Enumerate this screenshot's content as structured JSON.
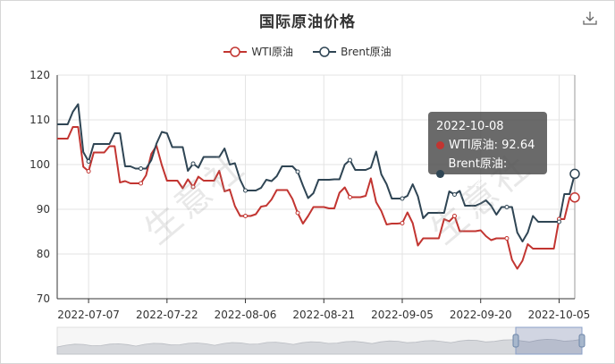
{
  "toolbar": {
    "download_icon": "download-icon"
  },
  "watermark_text": "生意社",
  "tooltip": {
    "date": "2022-10-08",
    "rows": [
      {
        "label": "WTI原油: 92.64",
        "color": "#c23531"
      },
      {
        "label": "Brent原油: 97.92",
        "color": "#2f4554"
      }
    ]
  },
  "chart_data": {
    "type": "line",
    "title": "国际原油价格",
    "ylim": [
      70,
      120
    ],
    "yticks": [
      70,
      80,
      90,
      100,
      110,
      120
    ],
    "xtick_labels": [
      "2022-07-07",
      "2022-07-22",
      "2022-08-06",
      "2022-08-21",
      "2022-09-05",
      "2022-09-20",
      "2022-10-05"
    ],
    "x_start": "2022-07-01",
    "x_end": "2022-10-08",
    "legend_position": "top-center",
    "grid": true,
    "series": [
      {
        "name": "WTI原油",
        "color": "#c23531",
        "values": [
          [
            "2022-07-01",
            105.8
          ],
          [
            "2022-07-02",
            105.8
          ],
          [
            "2022-07-03",
            105.8
          ],
          [
            "2022-07-04",
            108.4
          ],
          [
            "2022-07-05",
            108.4
          ],
          [
            "2022-07-06",
            99.5
          ],
          [
            "2022-07-07",
            98.5
          ],
          [
            "2022-07-08",
            102.7
          ],
          [
            "2022-07-09",
            102.7
          ],
          [
            "2022-07-10",
            102.7
          ],
          [
            "2022-07-11",
            104.1
          ],
          [
            "2022-07-12",
            104.1
          ],
          [
            "2022-07-13",
            96.0
          ],
          [
            "2022-07-14",
            96.3
          ],
          [
            "2022-07-15",
            95.8
          ],
          [
            "2022-07-16",
            95.8
          ],
          [
            "2022-07-17",
            95.8
          ],
          [
            "2022-07-18",
            97.6
          ],
          [
            "2022-07-19",
            102.4
          ],
          [
            "2022-07-20",
            104.2
          ],
          [
            "2022-07-21",
            99.9
          ],
          [
            "2022-07-22",
            96.4
          ],
          [
            "2022-07-23",
            96.4
          ],
          [
            "2022-07-24",
            96.4
          ],
          [
            "2022-07-25",
            94.7
          ],
          [
            "2022-07-26",
            96.7
          ],
          [
            "2022-07-27",
            95.0
          ],
          [
            "2022-07-28",
            97.3
          ],
          [
            "2022-07-29",
            96.4
          ],
          [
            "2022-07-30",
            96.4
          ],
          [
            "2022-07-31",
            96.4
          ],
          [
            "2022-08-01",
            98.6
          ],
          [
            "2022-08-02",
            94.0
          ],
          [
            "2022-08-03",
            94.4
          ],
          [
            "2022-08-04",
            90.7
          ],
          [
            "2022-08-05",
            88.5
          ],
          [
            "2022-08-06",
            88.5
          ],
          [
            "2022-08-07",
            88.5
          ],
          [
            "2022-08-08",
            88.9
          ],
          [
            "2022-08-09",
            90.6
          ],
          [
            "2022-08-10",
            90.8
          ],
          [
            "2022-08-11",
            92.2
          ],
          [
            "2022-08-12",
            94.3
          ],
          [
            "2022-08-13",
            94.3
          ],
          [
            "2022-08-14",
            94.3
          ],
          [
            "2022-08-15",
            92.3
          ],
          [
            "2022-08-16",
            89.2
          ],
          [
            "2022-08-17",
            86.8
          ],
          [
            "2022-08-18",
            88.5
          ],
          [
            "2022-08-19",
            90.5
          ],
          [
            "2022-08-20",
            90.5
          ],
          [
            "2022-08-21",
            90.5
          ],
          [
            "2022-08-22",
            90.2
          ],
          [
            "2022-08-23",
            90.2
          ],
          [
            "2022-08-24",
            93.7
          ],
          [
            "2022-08-25",
            94.9
          ],
          [
            "2022-08-26",
            92.7
          ],
          [
            "2022-08-27",
            92.7
          ],
          [
            "2022-08-28",
            92.7
          ],
          [
            "2022-08-29",
            93.0
          ],
          [
            "2022-08-30",
            96.9
          ],
          [
            "2022-08-31",
            91.6
          ],
          [
            "2022-09-01",
            89.6
          ],
          [
            "2022-09-02",
            86.6
          ],
          [
            "2022-09-03",
            86.8
          ],
          [
            "2022-09-04",
            86.8
          ],
          [
            "2022-09-05",
            86.9
          ],
          [
            "2022-09-06",
            89.3
          ],
          [
            "2022-09-07",
            86.9
          ],
          [
            "2022-09-08",
            81.9
          ],
          [
            "2022-09-09",
            83.5
          ],
          [
            "2022-09-10",
            83.5
          ],
          [
            "2022-09-11",
            83.5
          ],
          [
            "2022-09-12",
            83.5
          ],
          [
            "2022-09-13",
            87.8
          ],
          [
            "2022-09-14",
            87.3
          ],
          [
            "2022-09-15",
            88.5
          ],
          [
            "2022-09-16",
            85.1
          ],
          [
            "2022-09-17",
            85.1
          ],
          [
            "2022-09-18",
            85.1
          ],
          [
            "2022-09-19",
            85.1
          ],
          [
            "2022-09-20",
            85.3
          ],
          [
            "2022-09-21",
            84.0
          ],
          [
            "2022-09-22",
            83.1
          ],
          [
            "2022-09-23",
            83.5
          ],
          [
            "2022-09-24",
            83.5
          ],
          [
            "2022-09-25",
            83.5
          ],
          [
            "2022-09-26",
            78.7
          ],
          [
            "2022-09-27",
            76.7
          ],
          [
            "2022-09-28",
            78.5
          ],
          [
            "2022-09-29",
            82.2
          ],
          [
            "2022-09-30",
            81.2
          ],
          [
            "2022-10-01",
            81.2
          ],
          [
            "2022-10-02",
            81.2
          ],
          [
            "2022-10-03",
            81.2
          ],
          [
            "2022-10-04",
            81.2
          ],
          [
            "2022-10-05",
            87.8
          ],
          [
            "2022-10-06",
            87.8
          ],
          [
            "2022-10-07",
            92.6
          ],
          [
            "2022-10-08",
            92.64
          ]
        ]
      },
      {
        "name": "Brent原油",
        "color": "#2f4554",
        "values": [
          [
            "2022-07-01",
            109.0
          ],
          [
            "2022-07-02",
            109.0
          ],
          [
            "2022-07-03",
            109.0
          ],
          [
            "2022-07-04",
            111.8
          ],
          [
            "2022-07-05",
            113.5
          ],
          [
            "2022-07-06",
            102.8
          ],
          [
            "2022-07-07",
            100.7
          ],
          [
            "2022-07-08",
            104.6
          ],
          [
            "2022-07-09",
            104.6
          ],
          [
            "2022-07-10",
            104.6
          ],
          [
            "2022-07-11",
            104.6
          ],
          [
            "2022-07-12",
            107.0
          ],
          [
            "2022-07-13",
            107.0
          ],
          [
            "2022-07-14",
            99.6
          ],
          [
            "2022-07-15",
            99.6
          ],
          [
            "2022-07-16",
            99.1
          ],
          [
            "2022-07-17",
            99.1
          ],
          [
            "2022-07-18",
            99.1
          ],
          [
            "2022-07-19",
            101.0
          ],
          [
            "2022-07-20",
            104.7
          ],
          [
            "2022-07-21",
            107.3
          ],
          [
            "2022-07-22",
            107.0
          ],
          [
            "2022-07-23",
            103.9
          ],
          [
            "2022-07-24",
            103.9
          ],
          [
            "2022-07-25",
            103.9
          ],
          [
            "2022-07-26",
            98.6
          ],
          [
            "2022-07-27",
            100.2
          ],
          [
            "2022-07-28",
            99.3
          ],
          [
            "2022-07-29",
            101.7
          ],
          [
            "2022-07-30",
            101.7
          ],
          [
            "2022-07-31",
            101.7
          ],
          [
            "2022-08-01",
            101.7
          ],
          [
            "2022-08-02",
            103.6
          ],
          [
            "2022-08-03",
            100.0
          ],
          [
            "2022-08-04",
            100.3
          ],
          [
            "2022-08-05",
            96.6
          ],
          [
            "2022-08-06",
            94.2
          ],
          [
            "2022-08-07",
            94.2
          ],
          [
            "2022-08-08",
            94.2
          ],
          [
            "2022-08-09",
            94.8
          ],
          [
            "2022-08-10",
            96.6
          ],
          [
            "2022-08-11",
            96.3
          ],
          [
            "2022-08-12",
            97.4
          ],
          [
            "2022-08-13",
            99.6
          ],
          [
            "2022-08-14",
            99.6
          ],
          [
            "2022-08-15",
            99.6
          ],
          [
            "2022-08-16",
            98.4
          ],
          [
            "2022-08-17",
            95.3
          ],
          [
            "2022-08-18",
            92.5
          ],
          [
            "2022-08-19",
            93.6
          ],
          [
            "2022-08-20",
            96.6
          ],
          [
            "2022-08-21",
            96.6
          ],
          [
            "2022-08-22",
            96.6
          ],
          [
            "2022-08-23",
            96.7
          ],
          [
            "2022-08-24",
            96.7
          ],
          [
            "2022-08-25",
            100.0
          ],
          [
            "2022-08-26",
            101.0
          ],
          [
            "2022-08-27",
            98.8
          ],
          [
            "2022-08-28",
            98.8
          ],
          [
            "2022-08-29",
            98.8
          ],
          [
            "2022-08-30",
            99.3
          ],
          [
            "2022-08-31",
            102.9
          ],
          [
            "2022-09-01",
            97.8
          ],
          [
            "2022-09-02",
            95.6
          ],
          [
            "2022-09-03",
            92.4
          ],
          [
            "2022-09-04",
            92.4
          ],
          [
            "2022-09-05",
            92.4
          ],
          [
            "2022-09-06",
            93.0
          ],
          [
            "2022-09-07",
            95.6
          ],
          [
            "2022-09-08",
            92.9
          ],
          [
            "2022-09-09",
            88.0
          ],
          [
            "2022-09-10",
            89.2
          ],
          [
            "2022-09-11",
            89.2
          ],
          [
            "2022-09-12",
            89.2
          ],
          [
            "2022-09-13",
            89.2
          ],
          [
            "2022-09-14",
            94.0
          ],
          [
            "2022-09-15",
            93.3
          ],
          [
            "2022-09-16",
            94.1
          ],
          [
            "2022-09-17",
            90.8
          ],
          [
            "2022-09-18",
            90.8
          ],
          [
            "2022-09-19",
            90.8
          ],
          [
            "2022-09-20",
            91.3
          ],
          [
            "2022-09-21",
            92.0
          ],
          [
            "2022-09-22",
            90.8
          ],
          [
            "2022-09-23",
            88.8
          ],
          [
            "2022-09-24",
            90.5
          ],
          [
            "2022-09-25",
            90.5
          ],
          [
            "2022-09-26",
            90.5
          ],
          [
            "2022-09-27",
            84.8
          ],
          [
            "2022-09-28",
            82.8
          ],
          [
            "2022-09-29",
            84.8
          ],
          [
            "2022-09-30",
            88.5
          ],
          [
            "2022-10-01",
            87.2
          ],
          [
            "2022-10-02",
            87.2
          ],
          [
            "2022-10-03",
            87.2
          ],
          [
            "2022-10-04",
            87.2
          ],
          [
            "2022-10-05",
            87.2
          ],
          [
            "2022-10-06",
            93.4
          ],
          [
            "2022-10-07",
            93.4
          ],
          [
            "2022-10-08",
            97.92
          ]
        ]
      }
    ]
  }
}
